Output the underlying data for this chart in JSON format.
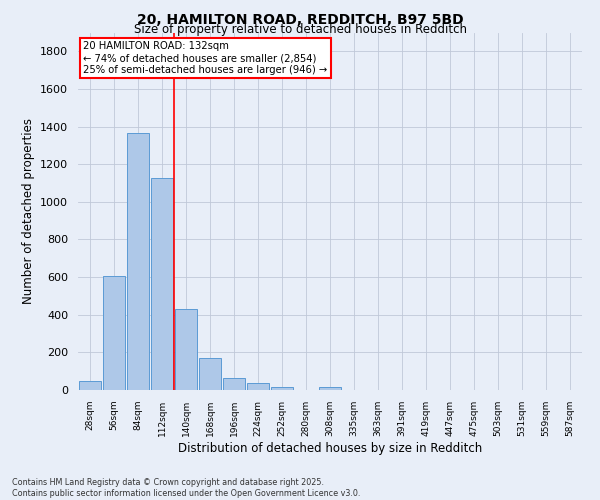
{
  "title_line1": "20, HAMILTON ROAD, REDDITCH, B97 5BD",
  "title_line2": "Size of property relative to detached houses in Redditch",
  "xlabel": "Distribution of detached houses by size in Redditch",
  "ylabel": "Number of detached properties",
  "annotation_title": "20 HAMILTON ROAD: 132sqm",
  "annotation_line1": "← 74% of detached houses are smaller (2,854)",
  "annotation_line2": "25% of semi-detached houses are larger (946) →",
  "footnote1": "Contains HM Land Registry data © Crown copyright and database right 2025.",
  "footnote2": "Contains public sector information licensed under the Open Government Licence v3.0.",
  "bin_labels": [
    "28sqm",
    "56sqm",
    "84sqm",
    "112sqm",
    "140sqm",
    "168sqm",
    "196sqm",
    "224sqm",
    "252sqm",
    "280sqm",
    "308sqm",
    "335sqm",
    "363sqm",
    "391sqm",
    "419sqm",
    "447sqm",
    "475sqm",
    "503sqm",
    "531sqm",
    "559sqm",
    "587sqm"
  ],
  "bar_values": [
    50,
    605,
    1365,
    1125,
    430,
    170,
    65,
    35,
    15,
    0,
    15,
    0,
    0,
    0,
    0,
    0,
    0,
    0,
    0,
    0,
    0
  ],
  "bar_color": "#aec8e8",
  "bar_edge_color": "#5b9bd5",
  "reference_line_index": 4,
  "reference_line_color": "red",
  "ylim": [
    0,
    1900
  ],
  "yticks": [
    0,
    200,
    400,
    600,
    800,
    1000,
    1200,
    1400,
    1600,
    1800
  ],
  "background_color": "#e8eef8",
  "grid_color": "#c0c8d8",
  "annotation_box_facecolor": "#ffffff",
  "annotation_box_edgecolor": "red",
  "fig_width": 6.0,
  "fig_height": 5.0,
  "dpi": 100
}
